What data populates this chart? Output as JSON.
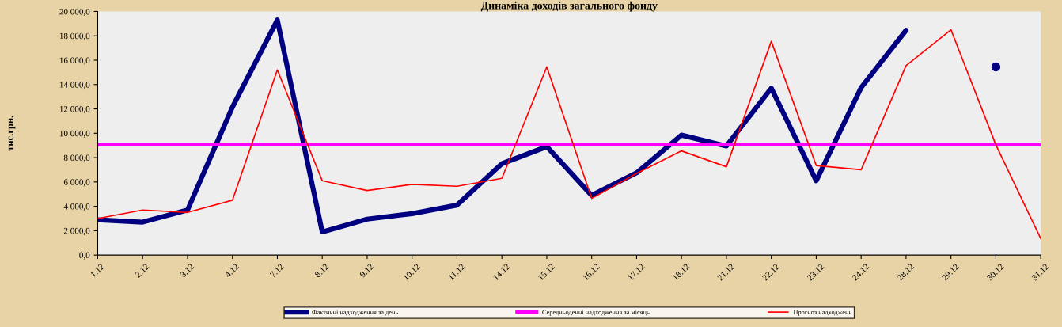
{
  "chart_data": {
    "type": "line",
    "title": "Динаміка доходів загального фонду",
    "ylabel": "тис.грн.",
    "categories": [
      "1.12",
      "2.12",
      "3.12",
      "4.12",
      "7.12",
      "8.12",
      "9.12",
      "10.12",
      "11.12",
      "14.12",
      "15.12",
      "16.12",
      "17.12",
      "18.12",
      "21.12",
      "22.12",
      "23.12",
      "24.12",
      "28.12",
      "29.12",
      "30.12",
      "31.12"
    ],
    "series": [
      {
        "name": "Фактичні надходження за день",
        "color": "#000080",
        "values": [
          2900,
          2700,
          3700,
          12150,
          19300,
          1900,
          2950,
          3400,
          4100,
          7500,
          8900,
          4900,
          6750,
          9850,
          8950,
          13700,
          6100,
          13750,
          18450,
          null,
          15450,
          null
        ]
      },
      {
        "name": "Середньоденні надходження за місяць",
        "color": "#ff00ff",
        "values": [
          9050,
          9050,
          9050,
          9050,
          9050,
          9050,
          9050,
          9050,
          9050,
          9050,
          9050,
          9050,
          9050,
          9050,
          9050,
          9050,
          9050,
          9050,
          9050,
          9050,
          9050,
          9050
        ]
      },
      {
        "name": "Прогноз надходжень",
        "color": "#ff0000",
        "values": [
          3000,
          3700,
          3500,
          4500,
          15200,
          6100,
          5300,
          5800,
          5650,
          6300,
          15450,
          4650,
          6700,
          8550,
          7250,
          17550,
          7350,
          7000,
          15550,
          18500,
          9050,
          1350
        ]
      }
    ],
    "ylim": [
      0,
      20000
    ],
    "yticks": [
      {
        "value": 0,
        "label": "0,0"
      },
      {
        "value": 2000,
        "label": "2 000,0"
      },
      {
        "value": 4000,
        "label": "4 000,0"
      },
      {
        "value": 6000,
        "label": "6 000,0"
      },
      {
        "value": 8000,
        "label": "8 000,0"
      },
      {
        "value": 10000,
        "label": "10 000,0"
      },
      {
        "value": 12000,
        "label": "12 000,0"
      },
      {
        "value": 14000,
        "label": "14 000,0"
      },
      {
        "value": 16000,
        "label": "16 000,0"
      },
      {
        "value": 18000,
        "label": "18 000,0"
      },
      {
        "value": 20000,
        "label": "20 000,0"
      }
    ],
    "grid": false,
    "legend": "bottom",
    "marker": "none",
    "line_style": "solid"
  }
}
